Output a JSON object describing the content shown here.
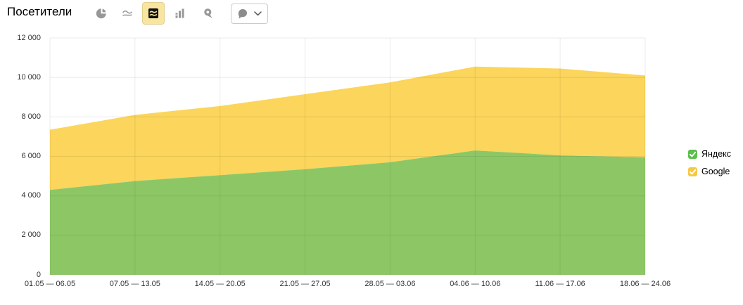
{
  "header": {
    "title": "Посетители"
  },
  "toolbar": {
    "buttons": [
      {
        "icon": "pie-chart-icon",
        "selected": false
      },
      {
        "icon": "line-chart-icon",
        "selected": false
      },
      {
        "icon": "stacked-area-chart-icon",
        "selected": true
      },
      {
        "icon": "bar-chart-icon",
        "selected": false
      },
      {
        "icon": "map-pin-icon",
        "selected": false
      },
      {
        "icon": "comment-dropdown",
        "selected": false
      }
    ],
    "selected_bg": "#F8E6A0",
    "icon_gray": "#979797"
  },
  "legend": {
    "items": [
      {
        "label": "Яндекс",
        "color": "#5CBE4C",
        "checked": true
      },
      {
        "label": "Google",
        "color": "#F7C844",
        "checked": true
      }
    ]
  },
  "chart_data": {
    "type": "area",
    "stacked": true,
    "title": "Посетители",
    "xlabel": "",
    "ylabel": "",
    "categories": [
      "01.05 — 06.05",
      "07.05 — 13.05",
      "14.05 — 20.05",
      "21.05 — 27.05",
      "28.05 — 03.06",
      "04.06 — 10.06",
      "11.06 — 17.06",
      "18.06 — 24.06"
    ],
    "series": [
      {
        "name": "Яндекс",
        "color": "#8DC765",
        "values": [
          4300,
          4750,
          5050,
          5350,
          5700,
          6300,
          6050,
          5950
        ]
      },
      {
        "name": "Google",
        "color": "#FBD55C",
        "values": [
          3050,
          3350,
          3500,
          3800,
          4050,
          4250,
          4400,
          4150
        ]
      }
    ],
    "stacked_totals": [
      7350,
      8100,
      8550,
      9150,
      9750,
      10550,
      10450,
      10100
    ],
    "ylim": [
      0,
      12000
    ],
    "y_tick_step": 2000,
    "y_ticks": [
      "12 000",
      "10 000",
      "8 000",
      "6 000",
      "4 000",
      "2 000",
      "0"
    ],
    "grid": true,
    "legend_position": "right"
  }
}
